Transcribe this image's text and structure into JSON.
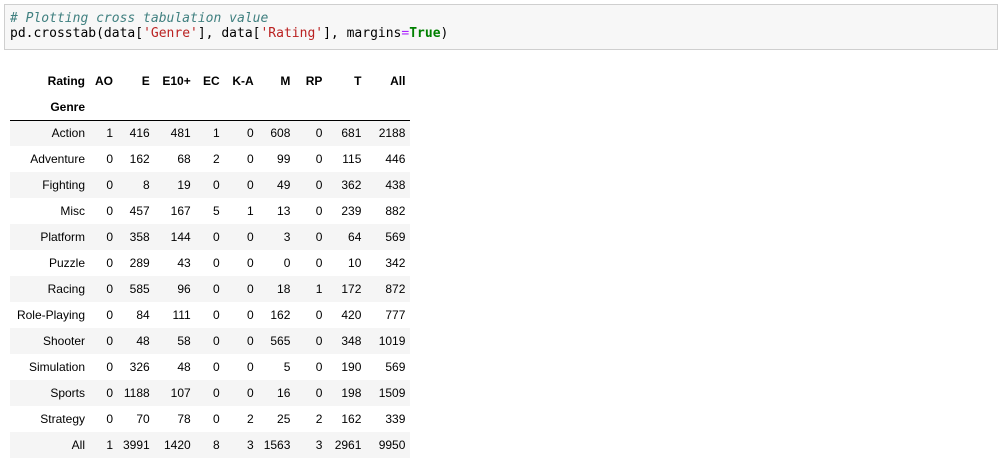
{
  "code_cell": {
    "comment": "# Plotting cross tabulation value",
    "line2_func": "pd.crosstab(data[",
    "line2_str1": "'Genre'",
    "line2_mid": "], data[",
    "line2_str2": "'Rating'",
    "line2_mid2": "], margins",
    "line2_eq": "=",
    "line2_kw": "True",
    "line2_end": ")"
  },
  "table": {
    "columns_name": "Rating",
    "index_name": "Genre",
    "columns": [
      "AO",
      "E",
      "E10+",
      "EC",
      "K-A",
      "M",
      "RP",
      "T",
      "All"
    ],
    "rows": [
      {
        "label": "Action",
        "values": [
          "1",
          "416",
          "481",
          "1",
          "0",
          "608",
          "0",
          "681",
          "2188"
        ]
      },
      {
        "label": "Adventure",
        "values": [
          "0",
          "162",
          "68",
          "2",
          "0",
          "99",
          "0",
          "115",
          "446"
        ]
      },
      {
        "label": "Fighting",
        "values": [
          "0",
          "8",
          "19",
          "0",
          "0",
          "49",
          "0",
          "362",
          "438"
        ]
      },
      {
        "label": "Misc",
        "values": [
          "0",
          "457",
          "167",
          "5",
          "1",
          "13",
          "0",
          "239",
          "882"
        ]
      },
      {
        "label": "Platform",
        "values": [
          "0",
          "358",
          "144",
          "0",
          "0",
          "3",
          "0",
          "64",
          "569"
        ]
      },
      {
        "label": "Puzzle",
        "values": [
          "0",
          "289",
          "43",
          "0",
          "0",
          "0",
          "0",
          "10",
          "342"
        ]
      },
      {
        "label": "Racing",
        "values": [
          "0",
          "585",
          "96",
          "0",
          "0",
          "18",
          "1",
          "172",
          "872"
        ]
      },
      {
        "label": "Role-Playing",
        "values": [
          "0",
          "84",
          "111",
          "0",
          "0",
          "162",
          "0",
          "420",
          "777"
        ]
      },
      {
        "label": "Shooter",
        "values": [
          "0",
          "48",
          "58",
          "0",
          "0",
          "565",
          "0",
          "348",
          "1019"
        ]
      },
      {
        "label": "Simulation",
        "values": [
          "0",
          "326",
          "48",
          "0",
          "0",
          "5",
          "0",
          "190",
          "569"
        ]
      },
      {
        "label": "Sports",
        "values": [
          "0",
          "1188",
          "107",
          "0",
          "0",
          "16",
          "0",
          "198",
          "1509"
        ]
      },
      {
        "label": "Strategy",
        "values": [
          "0",
          "70",
          "78",
          "0",
          "2",
          "25",
          "2",
          "162",
          "339"
        ]
      },
      {
        "label": "All",
        "values": [
          "1",
          "3991",
          "1420",
          "8",
          "3",
          "1563",
          "3",
          "2961",
          "9950"
        ]
      }
    ]
  }
}
